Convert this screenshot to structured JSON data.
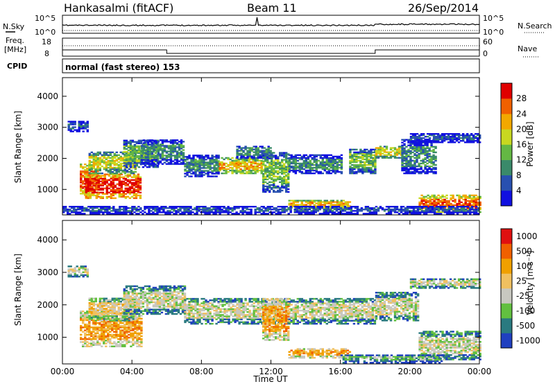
{
  "header": {
    "station": "Hankasalmi (fitACF)",
    "beam": "Beam 11",
    "date": "26/Sep/2014"
  },
  "status_panel": {
    "nsky_label": "N.Sky",
    "nsearch_label": "N.Search",
    "noise_ticks_left": [
      "10^5",
      "10^0"
    ],
    "noise_ticks_right": [
      "10^5",
      "10^0"
    ],
    "freq_label_1": "Freq.",
    "freq_label_2": "[MHz]",
    "freq_ticks": [
      "18",
      "8"
    ],
    "nave_label": "Nave",
    "nave_ticks": [
      "60",
      "0"
    ],
    "cpid_label": "CPID",
    "cpid_text": "normal (fast stereo) 153",
    "nave_step_x_hours": [
      6.0,
      18.0
    ]
  },
  "chart_data": [
    {
      "type": "heatmap",
      "panel": "power",
      "ylabel": "Slant Range [km]",
      "yticks": [
        "1000",
        "2000",
        "3000",
        "4000"
      ],
      "ylim": [
        180,
        4600
      ],
      "xlim": [
        0,
        24
      ],
      "colorbar_label": "Power [dB]",
      "colorbar_ticks": [
        "4",
        "8",
        "12",
        "16",
        "20",
        "24",
        "28"
      ],
      "colorbar_colors": [
        "#1010e0",
        "#2850b0",
        "#3a8a6a",
        "#64b844",
        "#c8d820",
        "#f2a800",
        "#f06000",
        "#e00000"
      ],
      "bands": [
        {
          "x": [
            0.3,
            1.5
          ],
          "range": [
            2850,
            3200
          ],
          "level": 1
        },
        {
          "x": [
            1.0,
            2.0
          ],
          "range": [
            800,
            1800
          ],
          "level": 6
        },
        {
          "x": [
            1.3,
            4.5
          ],
          "range": [
            700,
            1500
          ],
          "level": 7
        },
        {
          "x": [
            1.5,
            4.2
          ],
          "range": [
            1500,
            2200
          ],
          "level": 4
        },
        {
          "x": [
            3.5,
            5.5
          ],
          "range": [
            1700,
            2600
          ],
          "level": 3
        },
        {
          "x": [
            4.5,
            7.0
          ],
          "range": [
            1800,
            2600
          ],
          "level": 2
        },
        {
          "x": [
            7.0,
            9.0
          ],
          "range": [
            1400,
            2100
          ],
          "level": 2
        },
        {
          "x": [
            9.0,
            11.5
          ],
          "range": [
            1500,
            2000
          ],
          "level": 5
        },
        {
          "x": [
            10.0,
            12.0
          ],
          "range": [
            2000,
            2400
          ],
          "level": 2
        },
        {
          "x": [
            11.5,
            13.0
          ],
          "range": [
            900,
            2200
          ],
          "level": 3
        },
        {
          "x": [
            13.0,
            16.0
          ],
          "range": [
            1500,
            2100
          ],
          "level": 2
        },
        {
          "x": [
            13.0,
            16.5
          ],
          "range": [
            350,
            650
          ],
          "level": 5
        },
        {
          "x": [
            16.5,
            18.0
          ],
          "range": [
            1500,
            2300
          ],
          "level": 3
        },
        {
          "x": [
            18.0,
            19.5
          ],
          "range": [
            2000,
            2400
          ],
          "level": 4
        },
        {
          "x": [
            19.5,
            21.5
          ],
          "range": [
            1500,
            2600
          ],
          "level": 2
        },
        {
          "x": [
            20.0,
            24.0
          ],
          "range": [
            2500,
            2800
          ],
          "level": 1
        },
        {
          "x": [
            20.5,
            24.0
          ],
          "range": [
            250,
            800
          ],
          "level": 6
        },
        {
          "x": [
            0.0,
            24.0
          ],
          "range": [
            200,
            450
          ],
          "level": 1
        }
      ]
    },
    {
      "type": "heatmap",
      "panel": "velocity",
      "ylabel": "Slant Range [km]",
      "yticks": [
        "1000",
        "2000",
        "3000",
        "4000"
      ],
      "ylim": [
        180,
        4600
      ],
      "xlim": [
        0,
        24
      ],
      "xticks": [
        "00:00",
        "04:00",
        "08:00",
        "12:00",
        "16:00",
        "20:00",
        "00:00"
      ],
      "xlabel": "Time UT",
      "colorbar_label": "Velocity [m s⁻¹]",
      "colorbar_ticks": [
        "1000",
        "500",
        "100",
        "25",
        "-25",
        "-100",
        "-500",
        "-1000"
      ],
      "colorbar_colors": [
        "#2040c0",
        "#2a7a80",
        "#62c040",
        "#c8c8c0",
        "#f0c060",
        "#f0a000",
        "#f06000",
        "#e01010"
      ],
      "bands": [
        {
          "x": [
            0.3,
            1.5
          ],
          "range": [
            2850,
            3200
          ],
          "level": 3
        },
        {
          "x": [
            1.0,
            4.5
          ],
          "range": [
            700,
            1800
          ],
          "level": 5
        },
        {
          "x": [
            1.5,
            4.2
          ],
          "range": [
            1500,
            2200
          ],
          "level": 4
        },
        {
          "x": [
            3.5,
            7.0
          ],
          "range": [
            1700,
            2600
          ],
          "level": 3
        },
        {
          "x": [
            7.0,
            18.0
          ],
          "range": [
            1400,
            2200
          ],
          "level": 3
        },
        {
          "x": [
            11.5,
            13.0
          ],
          "range": [
            900,
            2200
          ],
          "level": 5
        },
        {
          "x": [
            13.0,
            16.5
          ],
          "range": [
            350,
            650
          ],
          "level": 5
        },
        {
          "x": [
            18.0,
            20.5
          ],
          "range": [
            1500,
            2400
          ],
          "level": 3
        },
        {
          "x": [
            20.0,
            24.0
          ],
          "range": [
            2500,
            2800
          ],
          "level": 3
        },
        {
          "x": [
            20.5,
            24.0
          ],
          "range": [
            300,
            1200
          ],
          "level": 3
        },
        {
          "x": [
            16.0,
            22.0
          ],
          "range": [
            200,
            450
          ],
          "level": 2
        }
      ]
    }
  ]
}
